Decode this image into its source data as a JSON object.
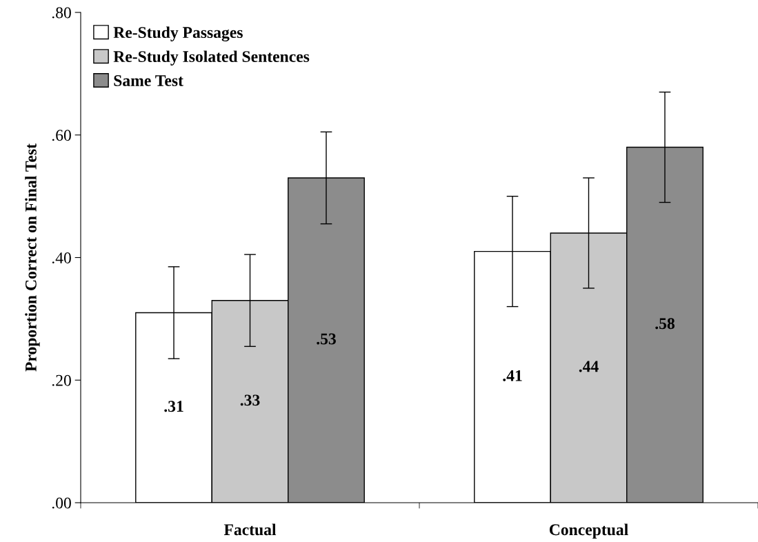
{
  "chart_data": {
    "type": "bar",
    "ylabel": "Proportion Correct on Final Test",
    "categories": [
      "Factual",
      "Conceptual"
    ],
    "series": [
      {
        "name": "Re-Study Passages",
        "color": "#ffffff",
        "values": [
          0.31,
          0.41
        ],
        "errors": [
          0.075,
          0.09
        ],
        "value_labels": [
          ".31",
          ".41"
        ]
      },
      {
        "name": "Re-Study Isolated Sentences",
        "color": "#c8c8c8",
        "values": [
          0.33,
          0.44
        ],
        "errors": [
          0.075,
          0.09
        ],
        "value_labels": [
          ".33",
          ".44"
        ]
      },
      {
        "name": "Same Test",
        "color": "#8c8c8c",
        "values": [
          0.53,
          0.58
        ],
        "errors": [
          0.075,
          0.09
        ],
        "value_labels": [
          ".53",
          ".58"
        ]
      }
    ],
    "ylim": [
      0,
      0.8
    ],
    "yticks": [
      {
        "value": 0,
        "label": ".00"
      },
      {
        "value": 0.2,
        "label": ".20"
      },
      {
        "value": 0.4,
        "label": ".40"
      },
      {
        "value": 0.6,
        "label": ".60"
      },
      {
        "value": 0.8,
        "label": ".80"
      }
    ],
    "grid": false,
    "legend": "top left"
  }
}
